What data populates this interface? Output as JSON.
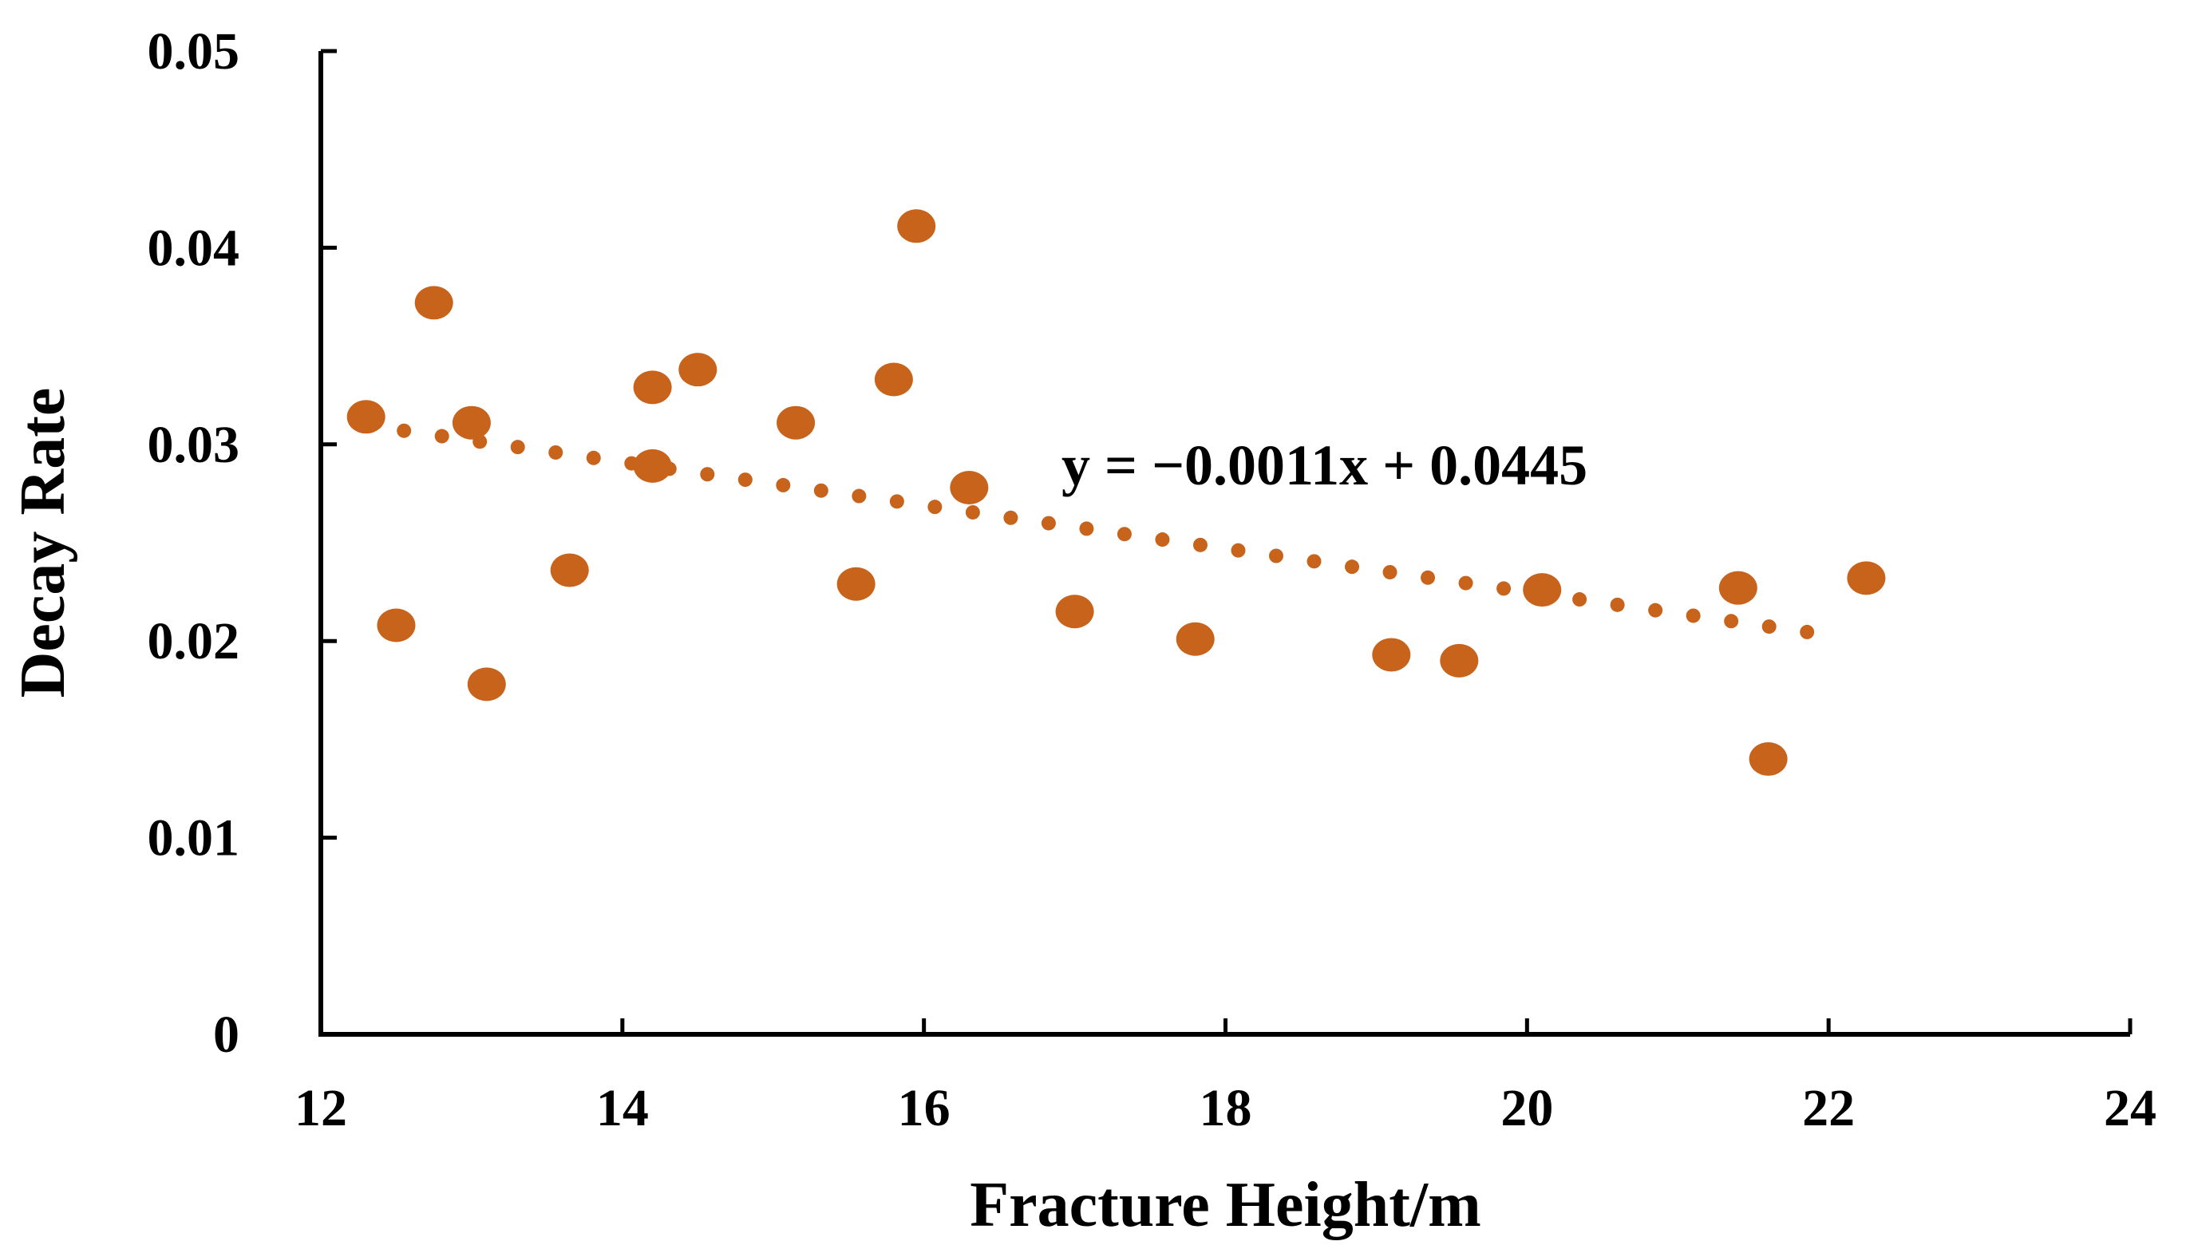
{
  "chart_data": {
    "type": "scatter",
    "xlabel": "Fracture Height/m",
    "ylabel": "Decay Rate",
    "xlim": [
      12,
      24
    ],
    "ylim": [
      0,
      0.05
    ],
    "x_ticks": [
      "12",
      "14",
      "16",
      "18",
      "20",
      "22",
      "24"
    ],
    "y_ticks": [
      "0",
      "0.01",
      "0.02",
      "0.03",
      "0.04",
      "0.05"
    ],
    "grid": false,
    "legend": "none",
    "series": [
      {
        "color": "#c8631c",
        "points": [
          {
            "x": 12.3,
            "y": 0.0314
          },
          {
            "x": 12.5,
            "y": 0.0208
          },
          {
            "x": 12.75,
            "y": 0.0372
          },
          {
            "x": 13.0,
            "y": 0.0311
          },
          {
            "x": 13.1,
            "y": 0.0178
          },
          {
            "x": 13.65,
            "y": 0.0236
          },
          {
            "x": 14.2,
            "y": 0.0329
          },
          {
            "x": 14.2,
            "y": 0.0289
          },
          {
            "x": 14.5,
            "y": 0.0338
          },
          {
            "x": 15.15,
            "y": 0.0311
          },
          {
            "x": 15.55,
            "y": 0.0229
          },
          {
            "x": 15.8,
            "y": 0.0333
          },
          {
            "x": 15.95,
            "y": 0.0411
          },
          {
            "x": 16.3,
            "y": 0.0278
          },
          {
            "x": 17.0,
            "y": 0.0215
          },
          {
            "x": 17.8,
            "y": 0.0201
          },
          {
            "x": 19.1,
            "y": 0.0193
          },
          {
            "x": 19.55,
            "y": 0.019
          },
          {
            "x": 20.1,
            "y": 0.0226
          },
          {
            "x": 21.4,
            "y": 0.0227
          },
          {
            "x": 21.6,
            "y": 0.014
          },
          {
            "x": 22.25,
            "y": 0.0232
          }
        ]
      }
    ],
    "trendline": {
      "type": "linear",
      "style": "dotted",
      "color": "#c8631c",
      "slope": -0.0011,
      "intercept": 0.0445,
      "x_range": [
        12.3,
        22.1
      ],
      "equation_label": "y = −0.0011x + 0.0445"
    }
  }
}
